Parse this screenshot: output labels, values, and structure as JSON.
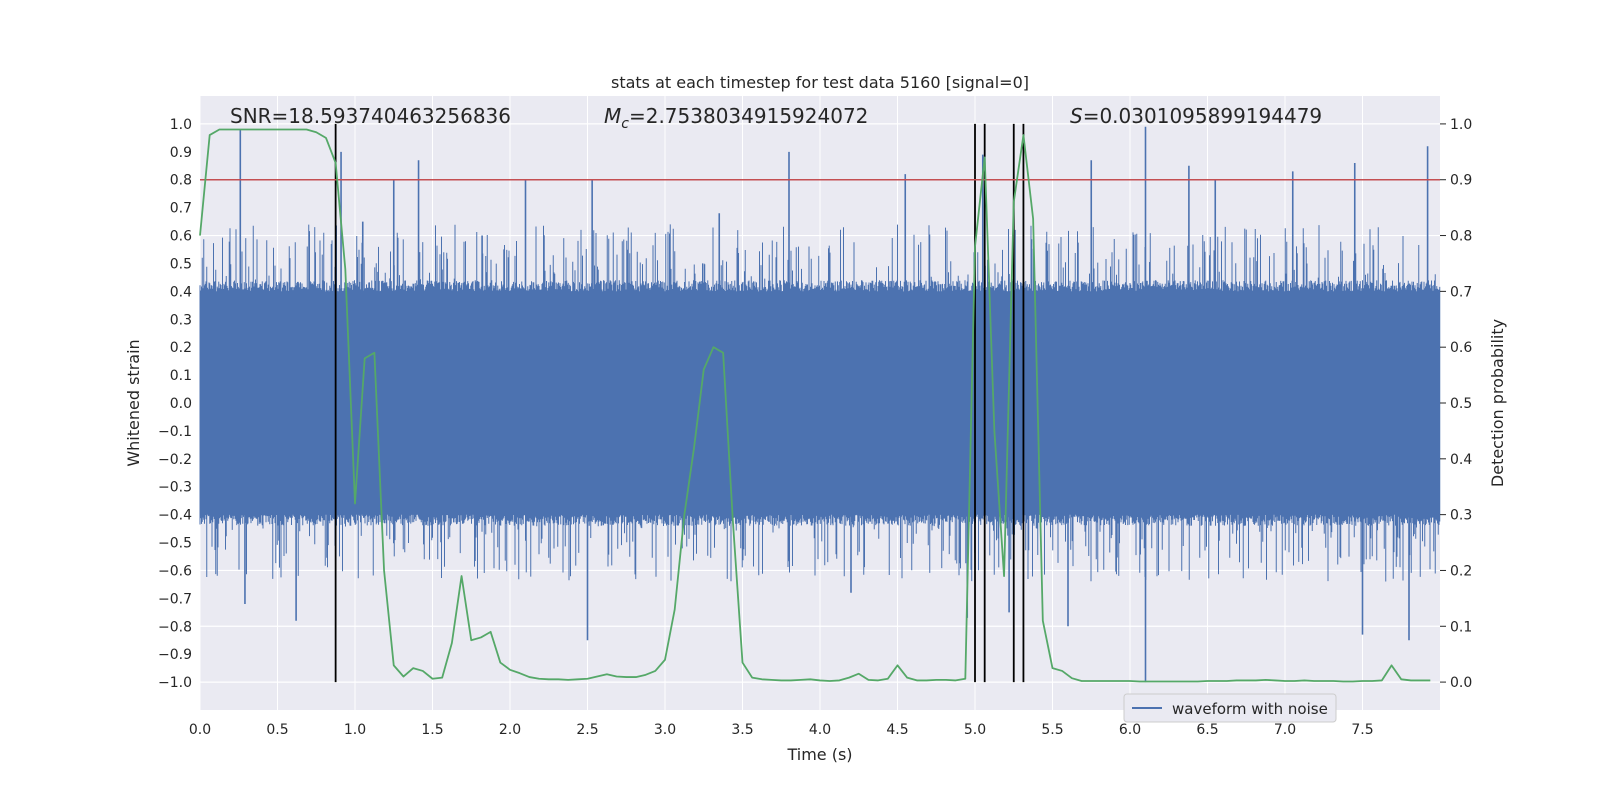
{
  "chart_data": {
    "type": "line",
    "title": "stats at each timestep for test data 5160 [signal=0]",
    "xlabel": "Time (s)",
    "ylabel_left": "Whitened strain",
    "ylabel_right": "Detection probability",
    "xlim": [
      0,
      8
    ],
    "ylim_left": [
      -1.1,
      1.1
    ],
    "ylim_right": [
      -0.05,
      1.05
    ],
    "grid": true,
    "legend_placement": "bottom-right",
    "x_ticks": [
      "0.0",
      "0.5",
      "1.0",
      "1.5",
      "2.0",
      "2.5",
      "3.0",
      "3.5",
      "4.0",
      "4.5",
      "5.0",
      "5.5",
      "6.0",
      "6.5",
      "7.0",
      "7.5"
    ],
    "y_left_ticks": [
      "1.0",
      "0.9",
      "0.8",
      "0.7",
      "0.6",
      "0.5",
      "0.4",
      "0.3",
      "0.2",
      "0.1",
      "0.0",
      "-0.1",
      "-0.2",
      "-0.3",
      "-0.4",
      "-0.5",
      "-0.6",
      "-0.7",
      "-0.8",
      "-0.9",
      "-1.0"
    ],
    "y_right_ticks": [
      "1.0",
      "0.9",
      "0.8",
      "0.7",
      "0.6",
      "0.5",
      "0.4",
      "0.3",
      "0.2",
      "0.1",
      "0.0"
    ],
    "annotations": {
      "snr": "SNR=18.593740463256836",
      "mc_symbol": "M",
      "mc_sub": "c",
      "mc_value": "=2.7538034915924072",
      "s_symbol": "S",
      "s_value": "=0.0301095899194479"
    },
    "threshold": {
      "value": 0.9,
      "axis": "right",
      "color": "#c44e52"
    },
    "vertical_lines": [
      0.875,
      5.0,
      5.0625,
      5.25,
      5.3125
    ],
    "series": [
      {
        "name": "waveform with noise",
        "axis": "left",
        "color": "#4c72b0",
        "kind": "noise",
        "envelope": {
          "base": 0.4,
          "typical_peak": 0.6,
          "max_peak": 0.98
        },
        "peaks": [
          {
            "x": 0.26,
            "y": 0.98
          },
          {
            "x": 0.29,
            "y": -0.72
          },
          {
            "x": 0.62,
            "y": -0.78
          },
          {
            "x": 0.91,
            "y": 0.9
          },
          {
            "x": 1.05,
            "y": 0.65
          },
          {
            "x": 1.25,
            "y": 0.8
          },
          {
            "x": 1.41,
            "y": 0.87
          },
          {
            "x": 1.82,
            "y": 0.6
          },
          {
            "x": 2.1,
            "y": 0.8
          },
          {
            "x": 2.5,
            "y": -0.85
          },
          {
            "x": 2.53,
            "y": 0.8
          },
          {
            "x": 3.35,
            "y": 0.68
          },
          {
            "x": 3.8,
            "y": 0.9
          },
          {
            "x": 4.2,
            "y": -0.68
          },
          {
            "x": 4.55,
            "y": 0.82
          },
          {
            "x": 4.95,
            "y": -0.77
          },
          {
            "x": 5.05,
            "y": 0.89
          },
          {
            "x": 5.22,
            "y": -0.75
          },
          {
            "x": 5.6,
            "y": -0.8
          },
          {
            "x": 5.75,
            "y": 0.87
          },
          {
            "x": 6.1,
            "y": 0.99
          },
          {
            "x": 6.1,
            "y": -1.0
          },
          {
            "x": 6.38,
            "y": 0.85
          },
          {
            "x": 6.55,
            "y": 0.8
          },
          {
            "x": 7.05,
            "y": 0.83
          },
          {
            "x": 7.45,
            "y": 0.86
          },
          {
            "x": 7.5,
            "y": -0.83
          },
          {
            "x": 7.8,
            "y": -0.85
          },
          {
            "x": 7.92,
            "y": 0.92
          }
        ]
      },
      {
        "name": "",
        "axis": "right",
        "color": "#55a868",
        "kind": "line",
        "x": [
          0.0,
          0.0625,
          0.125,
          0.1875,
          0.25,
          0.3125,
          0.375,
          0.4375,
          0.5,
          0.5625,
          0.625,
          0.6875,
          0.75,
          0.8125,
          0.875,
          0.9375,
          1.0,
          1.0625,
          1.125,
          1.1875,
          1.25,
          1.3125,
          1.375,
          1.4375,
          1.5,
          1.5625,
          1.625,
          1.6875,
          1.75,
          1.8125,
          1.875,
          1.9375,
          2.0,
          2.0625,
          2.125,
          2.1875,
          2.25,
          2.3125,
          2.375,
          2.4375,
          2.5,
          2.5625,
          2.625,
          2.6875,
          2.75,
          2.8125,
          2.875,
          2.9375,
          3.0,
          3.0625,
          3.125,
          3.1875,
          3.25,
          3.3125,
          3.375,
          3.4375,
          3.5,
          3.5625,
          3.625,
          3.6875,
          3.75,
          3.8125,
          3.875,
          3.9375,
          4.0,
          4.0625,
          4.125,
          4.1875,
          4.25,
          4.3125,
          4.375,
          4.4375,
          4.5,
          4.5625,
          4.625,
          4.6875,
          4.75,
          4.8125,
          4.875,
          4.9375,
          5.0,
          5.0625,
          5.125,
          5.1875,
          5.25,
          5.3125,
          5.375,
          5.4375,
          5.5,
          5.5625,
          5.625,
          5.6875,
          5.75,
          5.8125,
          5.875,
          5.9375,
          6.0,
          6.0625,
          6.125,
          6.1875,
          6.25,
          6.3125,
          6.375,
          6.4375,
          6.5,
          6.5625,
          6.625,
          6.6875,
          6.75,
          6.8125,
          6.875,
          6.9375,
          7.0,
          7.0625,
          7.125,
          7.1875,
          7.25,
          7.3125,
          7.375,
          7.4375,
          7.5,
          7.5625,
          7.625,
          7.6875,
          7.75,
          7.8125,
          7.875,
          7.9375
        ],
        "y": [
          0.8,
          0.98,
          0.99,
          0.99,
          0.99,
          0.99,
          0.99,
          0.99,
          0.99,
          0.99,
          0.99,
          0.99,
          0.985,
          0.975,
          0.93,
          0.74,
          0.32,
          0.58,
          0.59,
          0.2,
          0.03,
          0.01,
          0.025,
          0.02,
          0.006,
          0.008,
          0.07,
          0.19,
          0.075,
          0.08,
          0.09,
          0.035,
          0.022,
          0.016,
          0.009,
          0.006,
          0.005,
          0.005,
          0.004,
          0.005,
          0.006,
          0.01,
          0.014,
          0.01,
          0.009,
          0.009,
          0.013,
          0.02,
          0.04,
          0.13,
          0.3,
          0.42,
          0.56,
          0.6,
          0.59,
          0.29,
          0.035,
          0.008,
          0.005,
          0.004,
          0.003,
          0.003,
          0.004,
          0.005,
          0.003,
          0.002,
          0.003,
          0.008,
          0.015,
          0.004,
          0.003,
          0.006,
          0.03,
          0.008,
          0.003,
          0.003,
          0.004,
          0.004,
          0.003,
          0.006,
          0.78,
          0.94,
          0.45,
          0.19,
          0.86,
          0.98,
          0.83,
          0.11,
          0.025,
          0.02,
          0.007,
          0.002,
          0.002,
          0.002,
          0.002,
          0.002,
          0.002,
          0.001,
          0.001,
          0.001,
          0.001,
          0.001,
          0.001,
          0.001,
          0.002,
          0.002,
          0.002,
          0.003,
          0.003,
          0.003,
          0.004,
          0.003,
          0.002,
          0.002,
          0.003,
          0.002,
          0.002,
          0.002,
          0.001,
          0.001,
          0.002,
          0.002,
          0.003,
          0.03,
          0.005,
          0.003,
          0.003,
          0.003
        ]
      }
    ]
  }
}
